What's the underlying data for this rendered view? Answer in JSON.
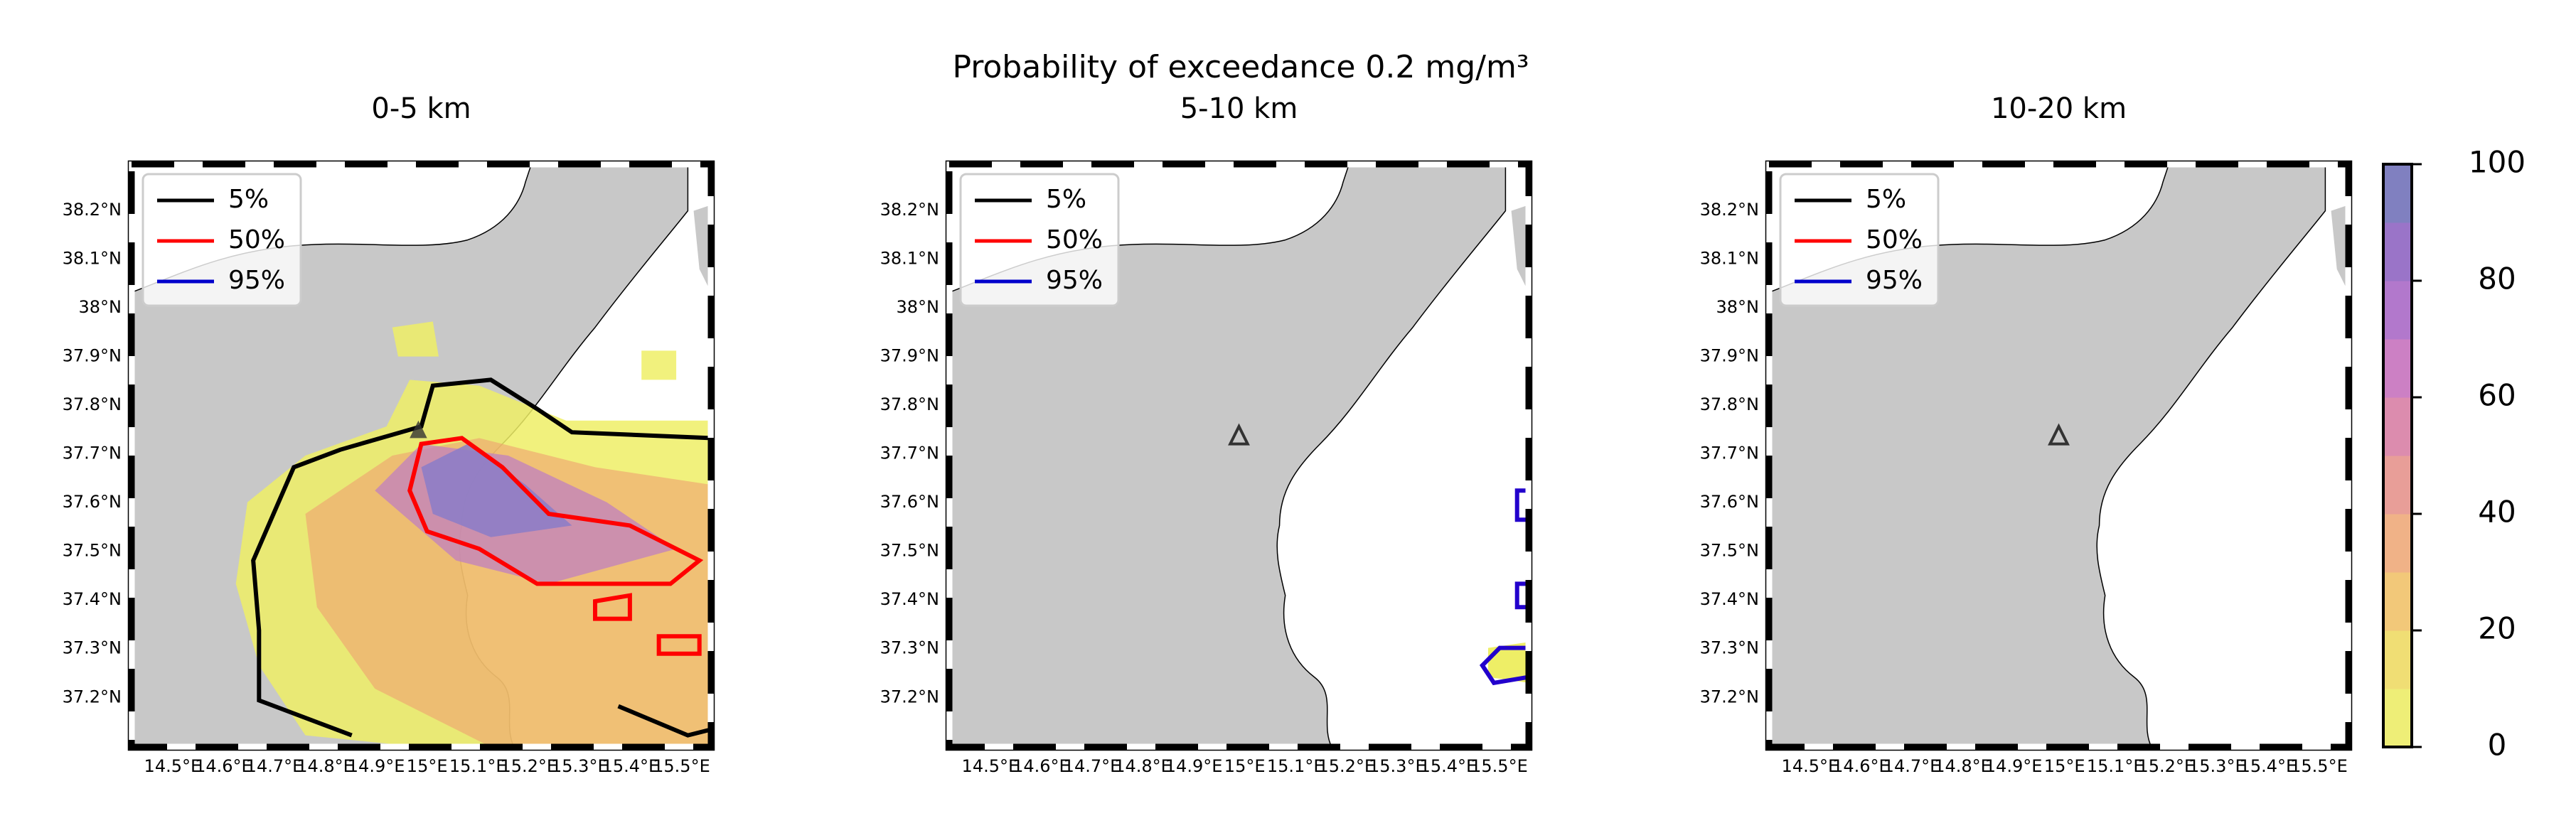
{
  "title": "Probability of exceedance 0.2 mg/m³",
  "panels": [
    {
      "title": "0-5 km"
    },
    {
      "title": "5-10 km"
    },
    {
      "title": "10-20 km"
    }
  ],
  "legend": [
    {
      "label": "5%",
      "color": "#000000"
    },
    {
      "label": "50%",
      "color": "#ff0000"
    },
    {
      "label": "95%",
      "color": "#0000cc"
    }
  ],
  "yticks": [
    "38.2°N",
    "38.1°N",
    "38°N",
    "37.9°N",
    "37.8°N",
    "37.7°N",
    "37.6°N",
    "37.5°N",
    "37.4°N",
    "37.3°N",
    "37.2°N"
  ],
  "xticks": [
    "14.5°E",
    "14.6°E",
    "14.7°E",
    "14.8°E",
    "14.9°E",
    "15°E",
    "15.1°E",
    "15.2°E",
    "15.3°E",
    "15.4°E",
    "15.5°E"
  ],
  "colorbar": {
    "range": [
      0,
      100
    ],
    "ticks": [
      0,
      20,
      40,
      60,
      80,
      100
    ],
    "colors": [
      "#eeee77",
      "#f0de74",
      "#f2c879",
      "#f0b287",
      "#e89e98",
      "#dc8cae",
      "#cc80c4",
      "#b278cc",
      "#9a74c8",
      "#8080c0"
    ]
  }
}
